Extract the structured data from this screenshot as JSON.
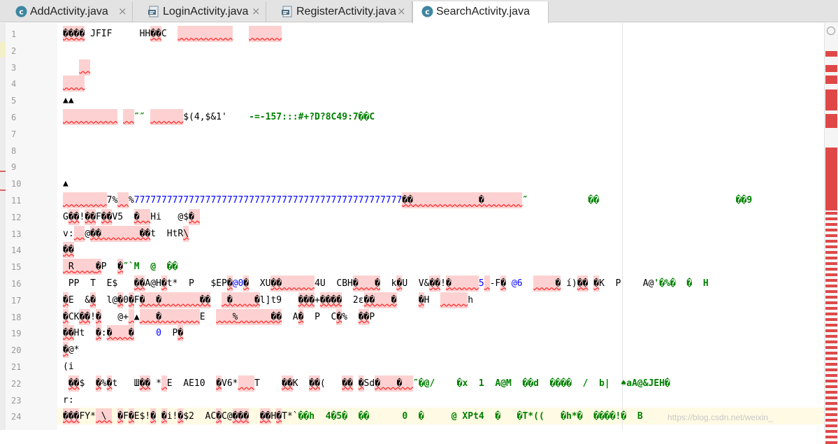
{
  "tabs": [
    {
      "label": "AddActivity.java",
      "icon": "java-class-icon",
      "close": "×"
    },
    {
      "label": "LoginActivity.java",
      "icon": "java-file-icon",
      "close": "×"
    },
    {
      "label": "RegisterActivity.java",
      "icon": "java-file-icon",
      "close": "×"
    },
    {
      "label": "SearchActivity.java",
      "icon": "java-class-icon",
      "close": "",
      "active": true
    }
  ],
  "editor": {
    "lines": [
      {
        "no": "1",
        "tokens": [
          {
            "t": "����",
            "c": "err"
          },
          {
            "t": " JFIF     HH",
            "c": "plain"
          },
          {
            "t": "��",
            "c": "err"
          },
          {
            "t": "C  ",
            "c": "plain"
          },
          {
            "t": "          ",
            "c": "err"
          },
          {
            "t": "   ",
            "c": "plain"
          },
          {
            "t": "      ",
            "c": "err"
          }
        ]
      },
      {
        "no": "2",
        "tokens": []
      },
      {
        "no": "3",
        "tokens": [
          {
            "t": "   ",
            "c": "plain"
          },
          {
            "t": "  ",
            "c": "err"
          }
        ]
      },
      {
        "no": "4",
        "tokens": [
          {
            "t": "    ",
            "c": "err"
          }
        ]
      },
      {
        "no": "5",
        "tokens": [
          {
            "t": "▲▲",
            "c": "plain"
          }
        ]
      },
      {
        "no": "6",
        "tokens": [
          {
            "t": "          ",
            "c": "err"
          },
          {
            "t": " ",
            "c": "plain"
          },
          {
            "t": "  ",
            "c": "err"
          },
          {
            "t": "″″ ",
            "c": "green"
          },
          {
            "t": "      ",
            "c": "err"
          },
          {
            "t": "$(4,$&1'    ",
            "c": "plain"
          },
          {
            "t": "-=-157:::#+?D?8C49:7��C",
            "c": "green"
          }
        ]
      },
      {
        "no": "7",
        "tokens": []
      },
      {
        "no": "8",
        "tokens": []
      },
      {
        "no": "9",
        "tokens": []
      },
      {
        "no": "10",
        "tokens": [
          {
            "t": "▲",
            "c": "plain"
          }
        ]
      },
      {
        "no": "11",
        "tokens": [
          {
            "t": "        ",
            "c": "err"
          },
          {
            "t": "7%",
            "c": "plain"
          },
          {
            "t": "  ",
            "c": "err"
          },
          {
            "t": "%",
            "c": "plain"
          },
          {
            "t": "7777777777777777777777777777777777777777777777777",
            "c": "blue"
          },
          {
            "t": "��            �       ",
            "c": "err"
          },
          {
            "t": "″           ��                         ��9",
            "c": "green"
          }
        ]
      },
      {
        "no": "12",
        "tokens": [
          {
            "t": "G",
            "c": "plain"
          },
          {
            "t": "��",
            "c": "err"
          },
          {
            "t": "!",
            "c": "plain"
          },
          {
            "t": "��",
            "c": "err"
          },
          {
            "t": "F",
            "c": "plain"
          },
          {
            "t": "��",
            "c": "err"
          },
          {
            "t": "V5  ",
            "c": "plain"
          },
          {
            "t": "�",
            "c": "err"
          },
          {
            "t": "  ",
            "c": "err"
          },
          {
            "t": "Hi   @$",
            "c": "plain"
          },
          {
            "t": "� ",
            "c": "err"
          }
        ]
      },
      {
        "no": "13",
        "tokens": [
          {
            "t": "v:",
            "c": "plain"
          },
          {
            "t": "  ",
            "c": "err"
          },
          {
            "t": "@",
            "c": "plain"
          },
          {
            "t": "��       ",
            "c": "err"
          },
          {
            "t": "��",
            "c": "err"
          },
          {
            "t": "t  HtR",
            "c": "plain"
          },
          {
            "t": "\\",
            "c": "err"
          }
        ]
      },
      {
        "no": "14",
        "tokens": [
          {
            "t": "��",
            "c": "err"
          }
        ]
      },
      {
        "no": "15",
        "tokens": [
          {
            "t": " R",
            "c": "err"
          },
          {
            "t": "    ",
            "c": "err"
          },
          {
            "t": "�",
            "c": "err"
          },
          {
            "t": "P  ",
            "c": "plain"
          },
          {
            "t": "�",
            "c": "err"
          },
          {
            "t": "″`M  @  ��",
            "c": "green"
          }
        ]
      },
      {
        "no": "16",
        "tokens": [
          {
            "t": " PP  T  E$   ",
            "c": "plain"
          },
          {
            "t": "��",
            "c": "err"
          },
          {
            "t": "A@H",
            "c": "plain"
          },
          {
            "t": "�",
            "c": "err"
          },
          {
            "t": "t*  P   $EP",
            "c": "plain"
          },
          {
            "t": "�",
            "c": "err"
          },
          {
            "t": "@0",
            "c": "blue"
          },
          {
            "t": "�",
            "c": "err"
          },
          {
            "t": "  XU",
            "c": "plain"
          },
          {
            "t": "��      ",
            "c": "err"
          },
          {
            "t": "4U  CBH",
            "c": "plain"
          },
          {
            "t": "�   �",
            "c": "err"
          },
          {
            "t": "  k",
            "c": "plain"
          },
          {
            "t": "�",
            "c": "err"
          },
          {
            "t": "U  V&",
            "c": "plain"
          },
          {
            "t": "��",
            "c": "err"
          },
          {
            "t": "!",
            "c": "plain"
          },
          {
            "t": "�     ",
            "c": "err"
          },
          {
            "t": "5",
            "c": "blue"
          },
          {
            "t": " ",
            "c": "err"
          },
          {
            "t": "-F",
            "c": "plain"
          },
          {
            "t": "�",
            "c": "err"
          },
          {
            "t": " @6  ",
            "c": "blue"
          },
          {
            "t": "    �",
            "c": "err"
          },
          {
            "t": " í)",
            "c": "plain"
          },
          {
            "t": "��",
            "c": "err"
          },
          {
            "t": " ",
            "c": "plain"
          },
          {
            "t": "�",
            "c": "err"
          },
          {
            "t": "K  P    A@",
            "c": "plain"
          },
          {
            "t": "'�%�  �  H",
            "c": "green"
          }
        ]
      },
      {
        "no": "17",
        "tokens": [
          {
            "t": "�",
            "c": "err"
          },
          {
            "t": "E  &",
            "c": "plain"
          },
          {
            "t": "�",
            "c": "err"
          },
          {
            "t": "  l@",
            "c": "plain"
          },
          {
            "t": "�",
            "c": "err"
          },
          {
            "t": "0",
            "c": "plain"
          },
          {
            "t": "�",
            "c": "err"
          },
          {
            "t": "F",
            "c": "plain"
          },
          {
            "t": "�",
            "c": "err"
          },
          {
            "t": "  �       ��",
            "c": "err"
          },
          {
            "t": "  ",
            "c": "plain"
          },
          {
            "t": " �    ",
            "c": "err"
          },
          {
            "t": "�",
            "c": "err"
          },
          {
            "t": "l]t9   ",
            "c": "plain"
          },
          {
            "t": "���",
            "c": "err"
          },
          {
            "t": "+",
            "c": "plain"
          },
          {
            "t": "����",
            "c": "err"
          },
          {
            "t": "  2ε",
            "c": "plain"
          },
          {
            "t": "��   �",
            "c": "err"
          },
          {
            "t": "    ",
            "c": "plain"
          },
          {
            "t": "�",
            "c": "err"
          },
          {
            "t": "H  ",
            "c": "plain"
          },
          {
            "t": "     ",
            "c": "err"
          },
          {
            "t": "h",
            "c": "plain"
          }
        ]
      },
      {
        "no": "18",
        "tokens": [
          {
            "t": "�",
            "c": "err"
          },
          {
            "t": "CK",
            "c": "plain"
          },
          {
            "t": "��",
            "c": "err"
          },
          {
            "t": "!",
            "c": "plain"
          },
          {
            "t": "�",
            "c": "err"
          },
          {
            "t": "   @+",
            "c": "plain"
          },
          {
            "t": " ",
            "c": "err"
          },
          {
            "t": "▲",
            "c": "plain"
          },
          {
            "t": "   �       ",
            "c": "err"
          },
          {
            "t": "E  ",
            "c": "plain"
          },
          {
            "t": "   %",
            "c": "err"
          },
          {
            "t": "      ��",
            "c": "err"
          },
          {
            "t": "  A",
            "c": "plain"
          },
          {
            "t": "�",
            "c": "err"
          },
          {
            "t": "  P  C",
            "c": "plain"
          },
          {
            "t": "�",
            "c": "err"
          },
          {
            "t": "%  ",
            "c": "plain"
          },
          {
            "t": "��",
            "c": "err"
          },
          {
            "t": "P",
            "c": "plain"
          }
        ]
      },
      {
        "no": "19",
        "tokens": [
          {
            "t": "��",
            "c": "err"
          },
          {
            "t": "Ht  ",
            "c": "plain"
          },
          {
            "t": "�",
            "c": "err"
          },
          {
            "t": ":",
            "c": "plain"
          },
          {
            "t": "�   �",
            "c": "err"
          },
          {
            "t": "    ",
            "c": "plain"
          },
          {
            "t": "0",
            "c": "blue"
          },
          {
            "t": "  P",
            "c": "plain"
          },
          {
            "t": "�",
            "c": "err"
          }
        ]
      },
      {
        "no": "20",
        "tokens": [
          {
            "t": "�",
            "c": "err"
          },
          {
            "t": "@*",
            "c": "plain"
          }
        ]
      },
      {
        "no": "21",
        "tokens": [
          {
            "t": "(i",
            "c": "plain"
          }
        ]
      },
      {
        "no": "22",
        "tokens": [
          {
            "t": " ",
            "c": "plain"
          },
          {
            "t": "��",
            "c": "err"
          },
          {
            "t": "$  ",
            "c": "plain"
          },
          {
            "t": "�",
            "c": "err"
          },
          {
            "t": "%",
            "c": "plain"
          },
          {
            "t": "�",
            "c": "err"
          },
          {
            "t": "t   Ш",
            "c": "plain"
          },
          {
            "t": "��",
            "c": "err"
          },
          {
            "t": " *",
            "c": "plain"
          },
          {
            "t": " ",
            "c": "err"
          },
          {
            "t": "E  AE10  ",
            "c": "plain"
          },
          {
            "t": "�",
            "c": "err"
          },
          {
            "t": "V6*",
            "c": "plain"
          },
          {
            "t": "   ",
            "c": "err"
          },
          {
            "t": "T    ",
            "c": "plain"
          },
          {
            "t": "��",
            "c": "err"
          },
          {
            "t": "K  ",
            "c": "plain"
          },
          {
            "t": "��",
            "c": "err"
          },
          {
            "t": "(   ",
            "c": "plain"
          },
          {
            "t": "��",
            "c": "err"
          },
          {
            "t": " ",
            "c": "plain"
          },
          {
            "t": "�",
            "c": "err"
          },
          {
            "t": "Sd",
            "c": "plain"
          },
          {
            "t": "�   �  ",
            "c": "err"
          },
          {
            "t": "″�@/    �x  1  A@M  ��d  ����  /  b|  ♠aA@&JEH�",
            "c": "green"
          }
        ]
      },
      {
        "no": "23",
        "tokens": [
          {
            "t": "r:",
            "c": "plain"
          }
        ]
      },
      {
        "no": "24",
        "tokens": [
          {
            "t": "���",
            "c": "err"
          },
          {
            "t": "FY*",
            "c": "plain"
          },
          {
            "t": " \\ ",
            "c": "err"
          },
          {
            "t": " ",
            "c": "plain"
          },
          {
            "t": "�",
            "c": "err"
          },
          {
            "t": "F",
            "c": "plain"
          },
          {
            "t": "�",
            "c": "err"
          },
          {
            "t": "E$!",
            "c": "plain"
          },
          {
            "t": "�",
            "c": "err"
          },
          {
            "t": " ",
            "c": "plain"
          },
          {
            "t": "�",
            "c": "err"
          },
          {
            "t": "i!",
            "c": "plain"
          },
          {
            "t": "�",
            "c": "err"
          },
          {
            "t": "$2  AC",
            "c": "plain"
          },
          {
            "t": "�",
            "c": "err"
          },
          {
            "t": "C@",
            "c": "plain"
          },
          {
            "t": "���",
            "c": "err"
          },
          {
            "t": "  ",
            "c": "plain"
          },
          {
            "t": "��",
            "c": "err"
          },
          {
            "t": "H",
            "c": "plain"
          },
          {
            "t": "�",
            "c": "err"
          },
          {
            "t": "T*`",
            "c": "plain"
          },
          {
            "t": "��h  4�5�  ��      0  �     @ XPt4  �   �T*((   �h*�  ����!�  B  ",
            "c": "green"
          }
        ]
      }
    ]
  },
  "watermark": "https://blog.csdn.net/weixin_"
}
